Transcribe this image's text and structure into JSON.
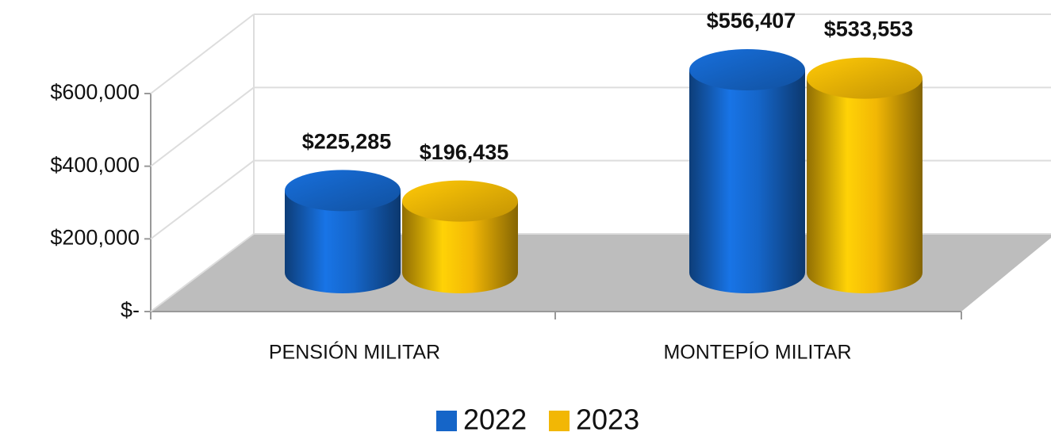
{
  "chart_data": {
    "type": "bar3d",
    "categories": [
      "PENSIÓN MILITAR",
      "MONTEPÍO MILITAR"
    ],
    "series": [
      {
        "name": "2022",
        "color": "#1565c8",
        "values": [
          225285,
          556407
        ],
        "value_labels": [
          "$225,285",
          "$556,407"
        ]
      },
      {
        "name": "2023",
        "color": "#f2b705",
        "values": [
          196435,
          533553
        ],
        "value_labels": [
          "$196,435",
          "$533,553"
        ]
      }
    ],
    "ylim": [
      0,
      600000
    ],
    "yticks": [
      {
        "value": 0,
        "label": "$-"
      },
      {
        "value": 200000,
        "label": "$200,000"
      },
      {
        "value": 400000,
        "label": "$400,000"
      },
      {
        "value": 600000,
        "label": "$600,000"
      }
    ],
    "grid": true,
    "legend": "bottom"
  }
}
